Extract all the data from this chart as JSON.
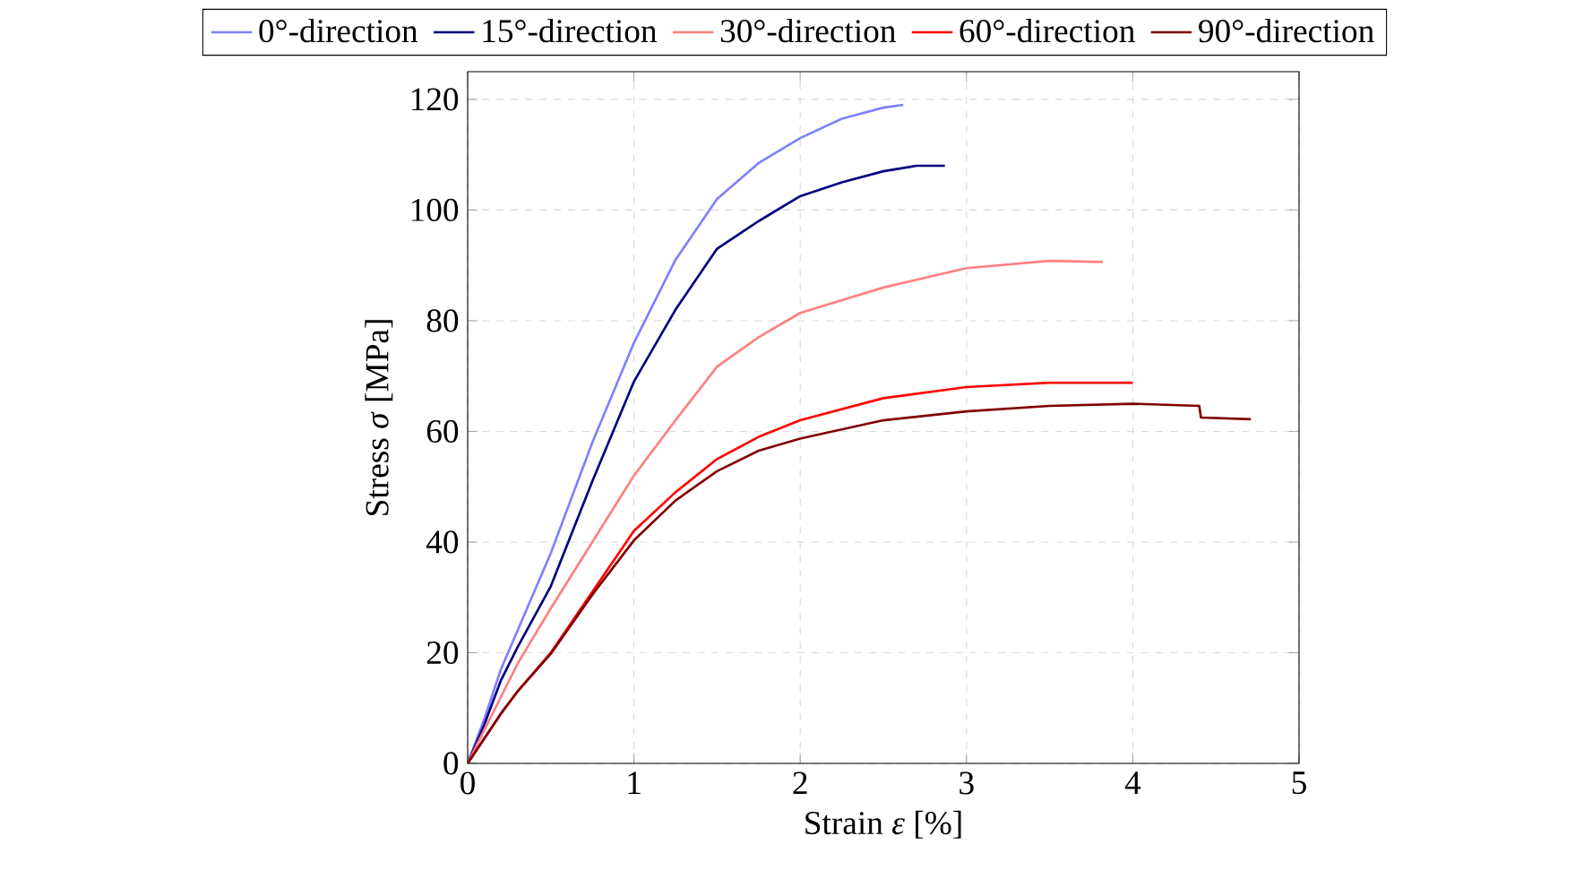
{
  "chart_data": {
    "type": "line",
    "xlabel": "Strain *ε* [%]",
    "ylabel": "Stress *σ* [MPa]",
    "xlim": [
      0,
      5
    ],
    "ylim": [
      0,
      125
    ],
    "xticks": [
      0,
      1,
      2,
      3,
      4,
      5
    ],
    "yticks": [
      0,
      20,
      40,
      60,
      80,
      100,
      120
    ],
    "grid": true,
    "legend": "top",
    "series": [
      {
        "name": "0°-direction",
        "color": "#8080ff",
        "x": [
          0,
          0.1,
          0.2,
          0.3,
          0.5,
          0.75,
          1,
          1.25,
          1.5,
          1.75,
          2,
          2.25,
          2.5,
          2.62
        ],
        "values": [
          0,
          8,
          17,
          24,
          38,
          58,
          76,
          91,
          102,
          108.5,
          113,
          116.5,
          118.5,
          119
        ]
      },
      {
        "name": "15°-direction",
        "color": "#000080",
        "x": [
          0,
          0.1,
          0.2,
          0.3,
          0.5,
          0.75,
          1,
          1.25,
          1.5,
          1.75,
          2,
          2.25,
          2.5,
          2.7,
          2.87
        ],
        "values": [
          0,
          7,
          15,
          21,
          32,
          51,
          69,
          82,
          93,
          98,
          102.5,
          105,
          107,
          108,
          108
        ]
      },
      {
        "name": "30°-direction",
        "color": "#ff8080",
        "x": [
          0,
          0.1,
          0.2,
          0.3,
          0.5,
          0.75,
          1,
          1.25,
          1.5,
          1.75,
          2,
          2.5,
          3,
          3.5,
          3.82
        ],
        "values": [
          0,
          6,
          12,
          18,
          28,
          40,
          52,
          62,
          71.7,
          77,
          81.4,
          86,
          89.5,
          90.8,
          90.6
        ]
      },
      {
        "name": "60°-direction",
        "color": "#ff0000",
        "x": [
          0,
          0.1,
          0.2,
          0.3,
          0.5,
          0.75,
          1,
          1.25,
          1.5,
          1.75,
          2,
          2.5,
          3,
          3.5,
          4
        ],
        "values": [
          0,
          4.5,
          9,
          13,
          20,
          31,
          42,
          49,
          55,
          59,
          62,
          66,
          68,
          68.8,
          68.8
        ]
      },
      {
        "name": "90°-direction",
        "color": "#800000",
        "x": [
          0,
          0.1,
          0.2,
          0.3,
          0.5,
          0.75,
          1,
          1.25,
          1.5,
          1.75,
          2,
          2.5,
          3,
          3.5,
          4,
          4.4,
          4.41,
          4.71
        ],
        "values": [
          0,
          4.5,
          9,
          13,
          19.8,
          30.5,
          40.3,
          47.5,
          52.8,
          56.5,
          58.7,
          62,
          63.6,
          64.6,
          65,
          64.6,
          62.5,
          62.2
        ]
      }
    ]
  }
}
